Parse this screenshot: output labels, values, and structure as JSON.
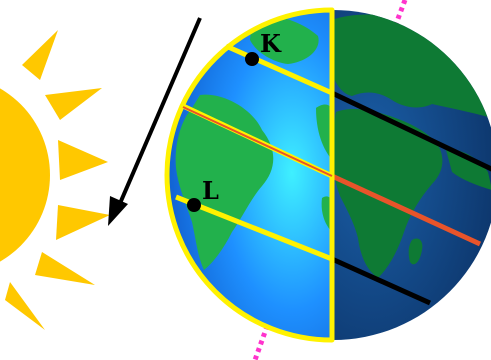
{
  "points": {
    "k": {
      "label": "K"
    },
    "l": {
      "label": "L"
    }
  },
  "colors": {
    "sun": "#FFC800",
    "day_side": "#1E90FF",
    "night_side": "#0B2F6B",
    "land_day": "#22B14C",
    "land_night": "#0E6B30",
    "outline_yellow": "#FFF200",
    "equator": "#E8542A",
    "night_latitude": "#000000",
    "axis": "#FF33CC",
    "arrow": "#000000"
  },
  "icons": {
    "sun": "sun-icon",
    "arrow": "sunlight-arrow-icon"
  }
}
